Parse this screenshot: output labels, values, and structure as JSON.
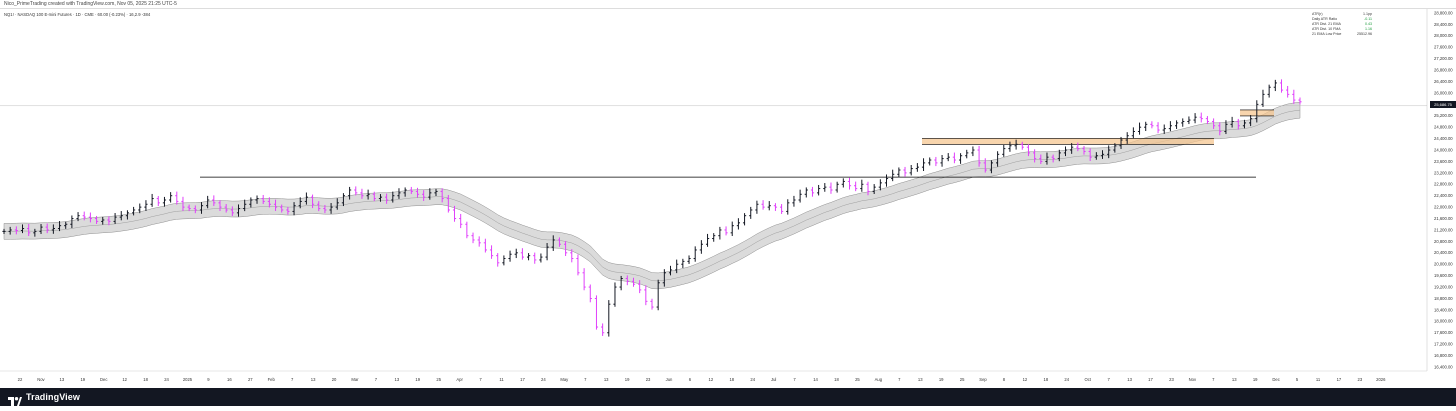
{
  "header": {
    "watermark": "Nico_PrimeTrading created with TradingView.com, Nov 05, 2025 21:25 UTC-5",
    "symbol_line": "NQ1! · NASDAQ 100 E-mini Futures · 1D · CME · 60.00 (-0.23%) · 16,2.9 -384"
  },
  "stats_table": [
    {
      "label": "ATR(r)",
      "value": "1.1pp"
    },
    {
      "label": "Daily ATR Ratio",
      "value": "-0.11"
    },
    {
      "label": "ATR Dist. 21 EMA",
      "value": "0.43"
    },
    {
      "label": "ATR Dist. 10 FMA",
      "value": "1.16"
    },
    {
      "label": "21 EMA Low Price",
      "value": "25512.96"
    }
  ],
  "current_price": {
    "label": "25,686.75",
    "countdown": "17:30:15"
  },
  "footer": {
    "logo_text": "TradingView"
  },
  "colors": {
    "up_bar": "#131722",
    "down_bar": "#e040fb",
    "ema_band": "#bdbdbd",
    "accent_box": "#f5c38a",
    "footer_bg": "#131722"
  },
  "chart_data": {
    "type": "line",
    "title": "",
    "xlabel": "",
    "ylabel": "",
    "ylim": [
      16400,
      28800
    ],
    "y_ticks": [
      "28,800.00",
      "28,400.00",
      "28,000.00",
      "27,600.00",
      "27,200.00",
      "26,800.00",
      "26,400.00",
      "26,000.00",
      "25,600.00",
      "25,200.00",
      "24,800.00",
      "24,400.00",
      "24,000.00",
      "23,600.00",
      "23,200.00",
      "22,800.00",
      "22,400.00",
      "22,000.00",
      "21,600.00",
      "21,200.00",
      "20,800.00",
      "20,400.00",
      "20,000.00",
      "19,600.00",
      "19,200.00",
      "18,800.00",
      "18,400.00",
      "18,000.00",
      "17,600.00",
      "17,200.00",
      "16,800.00",
      "16,400.00"
    ],
    "x_ticks": [
      "22",
      "Nov",
      "13",
      "19",
      "Dec",
      "12",
      "18",
      "24",
      "2025",
      "9",
      "16",
      "27",
      "Feb",
      "7",
      "13",
      "20",
      "Mar",
      "7",
      "13",
      "19",
      "25",
      "Apr",
      "7",
      "11",
      "17",
      "24",
      "May",
      "7",
      "13",
      "19",
      "23",
      "Jun",
      "6",
      "12",
      "18",
      "24",
      "Jul",
      "7",
      "14",
      "18",
      "25",
      "Aug",
      "7",
      "13",
      "19",
      "25",
      "Sep",
      "8",
      "12",
      "18",
      "24",
      "Oct",
      "7",
      "13",
      "17",
      "23",
      "Nov",
      "7",
      "13",
      "19",
      "Dec",
      "5",
      "11",
      "17",
      "23",
      "2026"
    ],
    "closes": [
      21150,
      21200,
      21180,
      21250,
      21100,
      21150,
      21300,
      21200,
      21250,
      21350,
      21400,
      21600,
      21700,
      21650,
      21600,
      21500,
      21550,
      21500,
      21650,
      21700,
      21800,
      21900,
      22000,
      22100,
      22300,
      22150,
      22250,
      22400,
      22200,
      22000,
      21950,
      21900,
      22050,
      22250,
      22150,
      22000,
      21900,
      21800,
      21950,
      22100,
      22250,
      22300,
      22200,
      22100,
      22000,
      21900,
      21850,
      22050,
      22200,
      22350,
      22100,
      21950,
      21900,
      22000,
      22150,
      22400,
      22600,
      22500,
      22400,
      22450,
      22300,
      22350,
      22250,
      22400,
      22500,
      22600,
      22550,
      22450,
      22350,
      22500,
      22550,
      22300,
      21900,
      21600,
      21400,
      21000,
      20850,
      20750,
      20500,
      20300,
      20050,
      20200,
      20350,
      20400,
      20250,
      20300,
      20150,
      20250,
      20600,
      20850,
      20700,
      20400,
      20200,
      19700,
      19200,
      18800,
      17800,
      17600,
      18600,
      19200,
      19500,
      19400,
      19300,
      19100,
      18700,
      18500,
      19350,
      19700,
      19800,
      20000,
      20100,
      20200,
      20500,
      20700,
      20900,
      21000,
      21200,
      21100,
      21350,
      21450,
      21700,
      21900,
      22100,
      22000,
      22050,
      22000,
      21850,
      22150,
      22250,
      22450,
      22600,
      22500,
      22650,
      22700,
      22600,
      22800,
      22900,
      22750,
      22650,
      22800,
      22550,
      22700,
      22850,
      23000,
      23150,
      23300,
      23200,
      23350,
      23400,
      23550,
      23650,
      23550,
      23700,
      23750,
      23650,
      23800,
      23900,
      24000,
      23550,
      23300,
      23550,
      23850,
      24050,
      24150,
      24200,
      24100,
      23900,
      23700,
      23600,
      23750,
      23700,
      23900,
      24000,
      24100,
      24050,
      23950,
      23750,
      23800,
      23850,
      24000,
      24150,
      24350,
      24500,
      24650,
      24800,
      24900,
      24850,
      24700,
      24750,
      24850,
      24950,
      25000,
      25050,
      25150,
      25100,
      25000,
      24850,
      24650,
      24900,
      25000,
      24850,
      24950,
      25100,
      25600,
      25950,
      26200,
      26350,
      26100,
      25950,
      25750,
      25690
    ],
    "breakout_level": 23050,
    "highlight_levels": [
      24300,
      25300
    ]
  }
}
